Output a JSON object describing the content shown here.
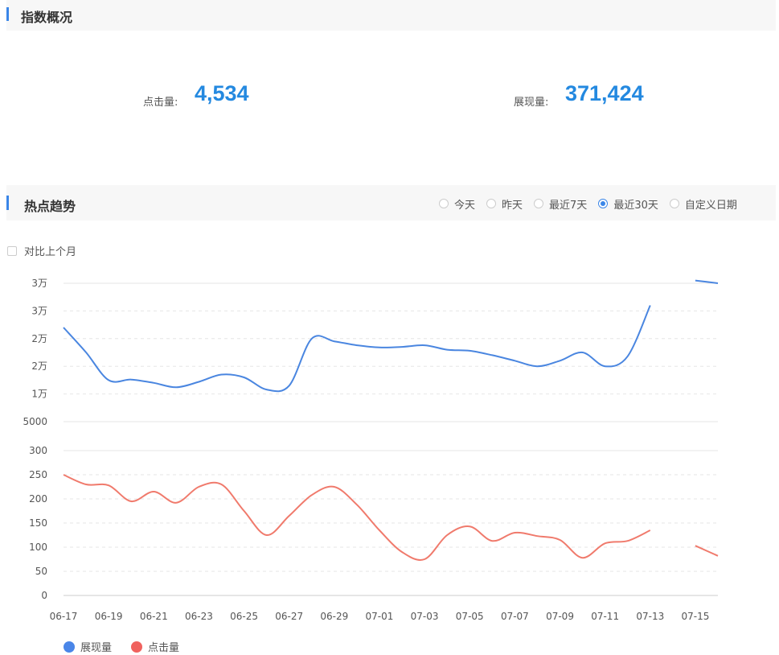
{
  "overview": {
    "title": "指数概况",
    "clicks_label": "点击量:",
    "clicks_value": "4,534",
    "impressions_label": "展现量:",
    "impressions_value": "371,424"
  },
  "trend": {
    "title": "热点趋势",
    "range_options": [
      {
        "label": "今天",
        "selected": false
      },
      {
        "label": "昨天",
        "selected": false
      },
      {
        "label": "最近7天",
        "selected": false
      },
      {
        "label": "最近30天",
        "selected": true
      },
      {
        "label": "自定义日期",
        "selected": false
      }
    ],
    "compare_label": "对比上个月"
  },
  "colors": {
    "accent": "#3a86e8",
    "value": "#2489e0",
    "impressions": "#4a86e0",
    "clicks": "#f07a6c"
  },
  "chart_data": {
    "type": "line",
    "x": [
      "06-17",
      "06-18",
      "06-19",
      "06-20",
      "06-21",
      "06-22",
      "06-23",
      "06-24",
      "06-25",
      "06-26",
      "06-27",
      "06-28",
      "06-29",
      "06-30",
      "07-01",
      "07-02",
      "07-03",
      "07-04",
      "07-05",
      "07-06",
      "07-07",
      "07-08",
      "07-09",
      "07-10",
      "07-11",
      "07-12",
      "07-13",
      "07-14",
      "07-15",
      "07-16"
    ],
    "x_tick_labels": [
      "06-17",
      "06-19",
      "06-21",
      "06-23",
      "06-25",
      "06-27",
      "06-29",
      "07-01",
      "07-03",
      "07-05",
      "07-07",
      "07-09",
      "07-11",
      "07-13",
      "07-15"
    ],
    "top_axis": {
      "tick_labels": [
        "5000",
        "1万",
        "2万",
        "2万",
        "3万",
        "3万"
      ],
      "range": [
        5000,
        30000
      ]
    },
    "bottom_axis": {
      "tick_labels": [
        "0",
        "50",
        "100",
        "150",
        "200",
        "250",
        "300"
      ],
      "range": [
        0,
        300
      ]
    },
    "series": [
      {
        "name": "展现量",
        "axis": "top",
        "values": [
          22000,
          17500,
          12500,
          12600,
          12000,
          11200,
          12200,
          13500,
          13000,
          10800,
          11500,
          20000,
          19500,
          18800,
          18400,
          18500,
          18800,
          18000,
          17800,
          17000,
          16000,
          15000,
          16000,
          17500,
          15000,
          16800,
          26000,
          null,
          30500,
          30000
        ]
      },
      {
        "name": "点击量",
        "axis": "bottom",
        "values": [
          250,
          230,
          228,
          195,
          215,
          192,
          225,
          230,
          175,
          125,
          165,
          208,
          225,
          188,
          135,
          90,
          75,
          125,
          143,
          113,
          130,
          123,
          115,
          78,
          108,
          113,
          135,
          null,
          103,
          82
        ]
      }
    ],
    "grid": true,
    "legend_position": "bottom-left"
  }
}
